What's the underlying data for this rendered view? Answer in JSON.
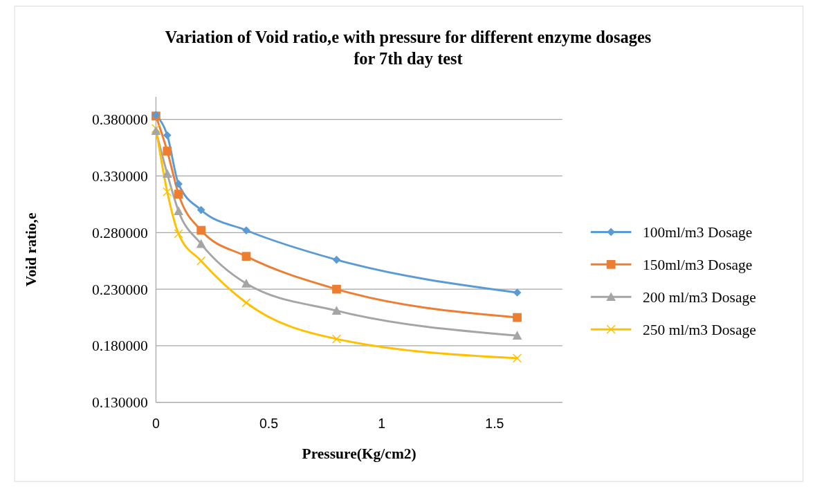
{
  "chart_data": {
    "type": "line",
    "title": "Variation of Void ratio,e with pressure for different enzyme dosages\nfor 7th day test",
    "xlabel": "Pressure(Kg/cm2)",
    "ylabel": "Void ratio,e",
    "x": [
      0,
      0.05,
      0.1,
      0.2,
      0.4,
      0.8,
      1.6
    ],
    "series": [
      {
        "name": "100ml/m3 Dosage",
        "color": "#5b9bd5",
        "marker": "diamond",
        "values": [
          0.384,
          0.366,
          0.323,
          0.3,
          0.282,
          0.256,
          0.227
        ]
      },
      {
        "name": "150ml/m3 Dosage",
        "color": "#ed7d31",
        "marker": "square",
        "values": [
          0.383,
          0.352,
          0.314,
          0.282,
          0.259,
          0.23,
          0.205
        ]
      },
      {
        "name": "200 ml/m3 Dosage",
        "color": "#a5a5a5",
        "marker": "triangle",
        "values": [
          0.37,
          0.332,
          0.299,
          0.27,
          0.235,
          0.211,
          0.189
        ]
      },
      {
        "name": "250 ml/m3 Dosage",
        "color": "#ffc000",
        "marker": "cross",
        "values": [
          0.372,
          0.316,
          0.279,
          0.255,
          0.218,
          0.186,
          0.169
        ]
      }
    ],
    "xlim": [
      0,
      1.8
    ],
    "xticks": [
      0,
      0.5,
      1,
      1.5
    ],
    "ylim": [
      0.13,
      0.4
    ],
    "yticks": [
      {
        "value": 0.13,
        "label": "0.130000"
      },
      {
        "value": 0.18,
        "label": "0.180000"
      },
      {
        "value": 0.23,
        "label": "0.230000"
      },
      {
        "value": 0.28,
        "label": "0.280000"
      },
      {
        "value": 0.33,
        "label": "0.330000"
      },
      {
        "value": 0.38,
        "label": "0.380000"
      }
    ],
    "grid": "y",
    "legend": "right"
  }
}
